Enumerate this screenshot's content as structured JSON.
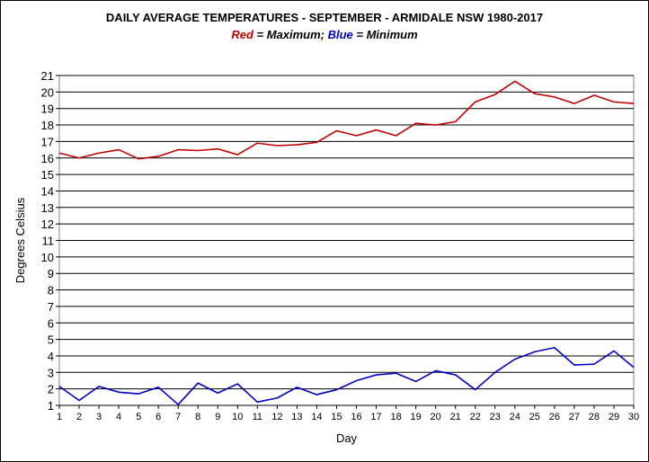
{
  "chart_data": {
    "type": "line",
    "title": "DAILY AVERAGE  TEMPERATURES - SEPTEMBER - ARMIDALE NSW  1980-2017",
    "subtitle": {
      "red_word": "Red",
      "red_text": " = Maximum;  ",
      "blue_word": "Blue",
      "blue_text": " = Minimum"
    },
    "xlabel": "Day",
    "ylabel": "Degrees Celsius",
    "xlim": [
      1,
      30
    ],
    "ylim": [
      1,
      21
    ],
    "yticks": [
      1,
      2,
      3,
      4,
      5,
      6,
      7,
      8,
      9,
      10,
      11,
      12,
      13,
      14,
      15,
      16,
      17,
      18,
      19,
      20,
      21
    ],
    "grid": true,
    "x": [
      1,
      2,
      3,
      4,
      5,
      6,
      7,
      8,
      9,
      10,
      11,
      12,
      13,
      14,
      15,
      16,
      17,
      18,
      19,
      20,
      21,
      22,
      23,
      24,
      25,
      26,
      27,
      28,
      29,
      30
    ],
    "series": [
      {
        "name": "Maximum",
        "color": "#c00000",
        "values": [
          16.3,
          16.0,
          16.3,
          16.5,
          15.95,
          16.1,
          16.5,
          16.45,
          16.55,
          16.2,
          16.9,
          16.75,
          16.8,
          16.95,
          17.65,
          17.35,
          17.7,
          17.35,
          18.1,
          18.0,
          18.2,
          19.4,
          19.85,
          20.65,
          19.9,
          19.7,
          19.3,
          19.8,
          19.4,
          19.3
        ]
      },
      {
        "name": "Minimum",
        "color": "#0000c0",
        "values": [
          2.15,
          1.3,
          2.15,
          1.8,
          1.7,
          2.1,
          1.05,
          2.35,
          1.75,
          2.3,
          1.2,
          1.45,
          2.1,
          1.65,
          1.95,
          2.5,
          2.85,
          2.95,
          2.45,
          3.1,
          2.85,
          1.95,
          3.0,
          3.8,
          4.25,
          4.5,
          3.45,
          3.5,
          4.3,
          3.3
        ]
      }
    ]
  }
}
